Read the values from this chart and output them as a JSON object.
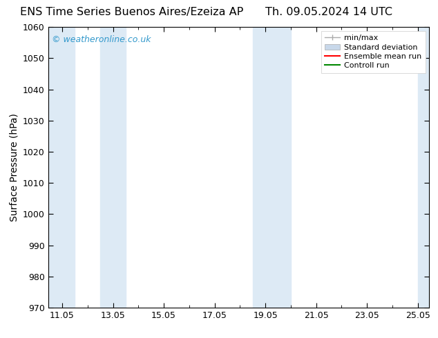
{
  "title_left": "ENS Time Series Buenos Aires/Ezeiza AP",
  "title_right": "Th. 09.05.2024 14 UTC",
  "ylabel": "Surface Pressure (hPa)",
  "ylim": [
    970,
    1060
  ],
  "yticks": [
    970,
    980,
    990,
    1000,
    1010,
    1020,
    1030,
    1040,
    1050,
    1060
  ],
  "xlim_start": 10.5,
  "xlim_end": 25.5,
  "xtick_labels": [
    "11.05",
    "13.05",
    "15.05",
    "17.05",
    "19.05",
    "21.05",
    "23.05",
    "25.05"
  ],
  "xtick_positions": [
    11.05,
    13.05,
    15.05,
    17.05,
    19.05,
    21.05,
    23.05,
    25.05
  ],
  "shaded_bands": [
    {
      "x_start": 10.5,
      "x_end": 11.55
    },
    {
      "x_start": 12.55,
      "x_end": 13.55
    },
    {
      "x_start": 18.55,
      "x_end": 19.55
    },
    {
      "x_start": 19.55,
      "x_end": 20.05
    },
    {
      "x_start": 25.05,
      "x_end": 25.5
    }
  ],
  "shade_color": "#ddeaf5",
  "watermark_text": "© weatheronline.co.uk",
  "watermark_color": "#3399cc",
  "bg_color": "#ffffff",
  "legend_minmax_color": "#aaaaaa",
  "legend_std_color": "#c8d8ea",
  "legend_ens_color": "#ff0000",
  "legend_ctrl_color": "#008800",
  "title_fontsize": 11.5,
  "tick_fontsize": 9,
  "ylabel_fontsize": 10
}
